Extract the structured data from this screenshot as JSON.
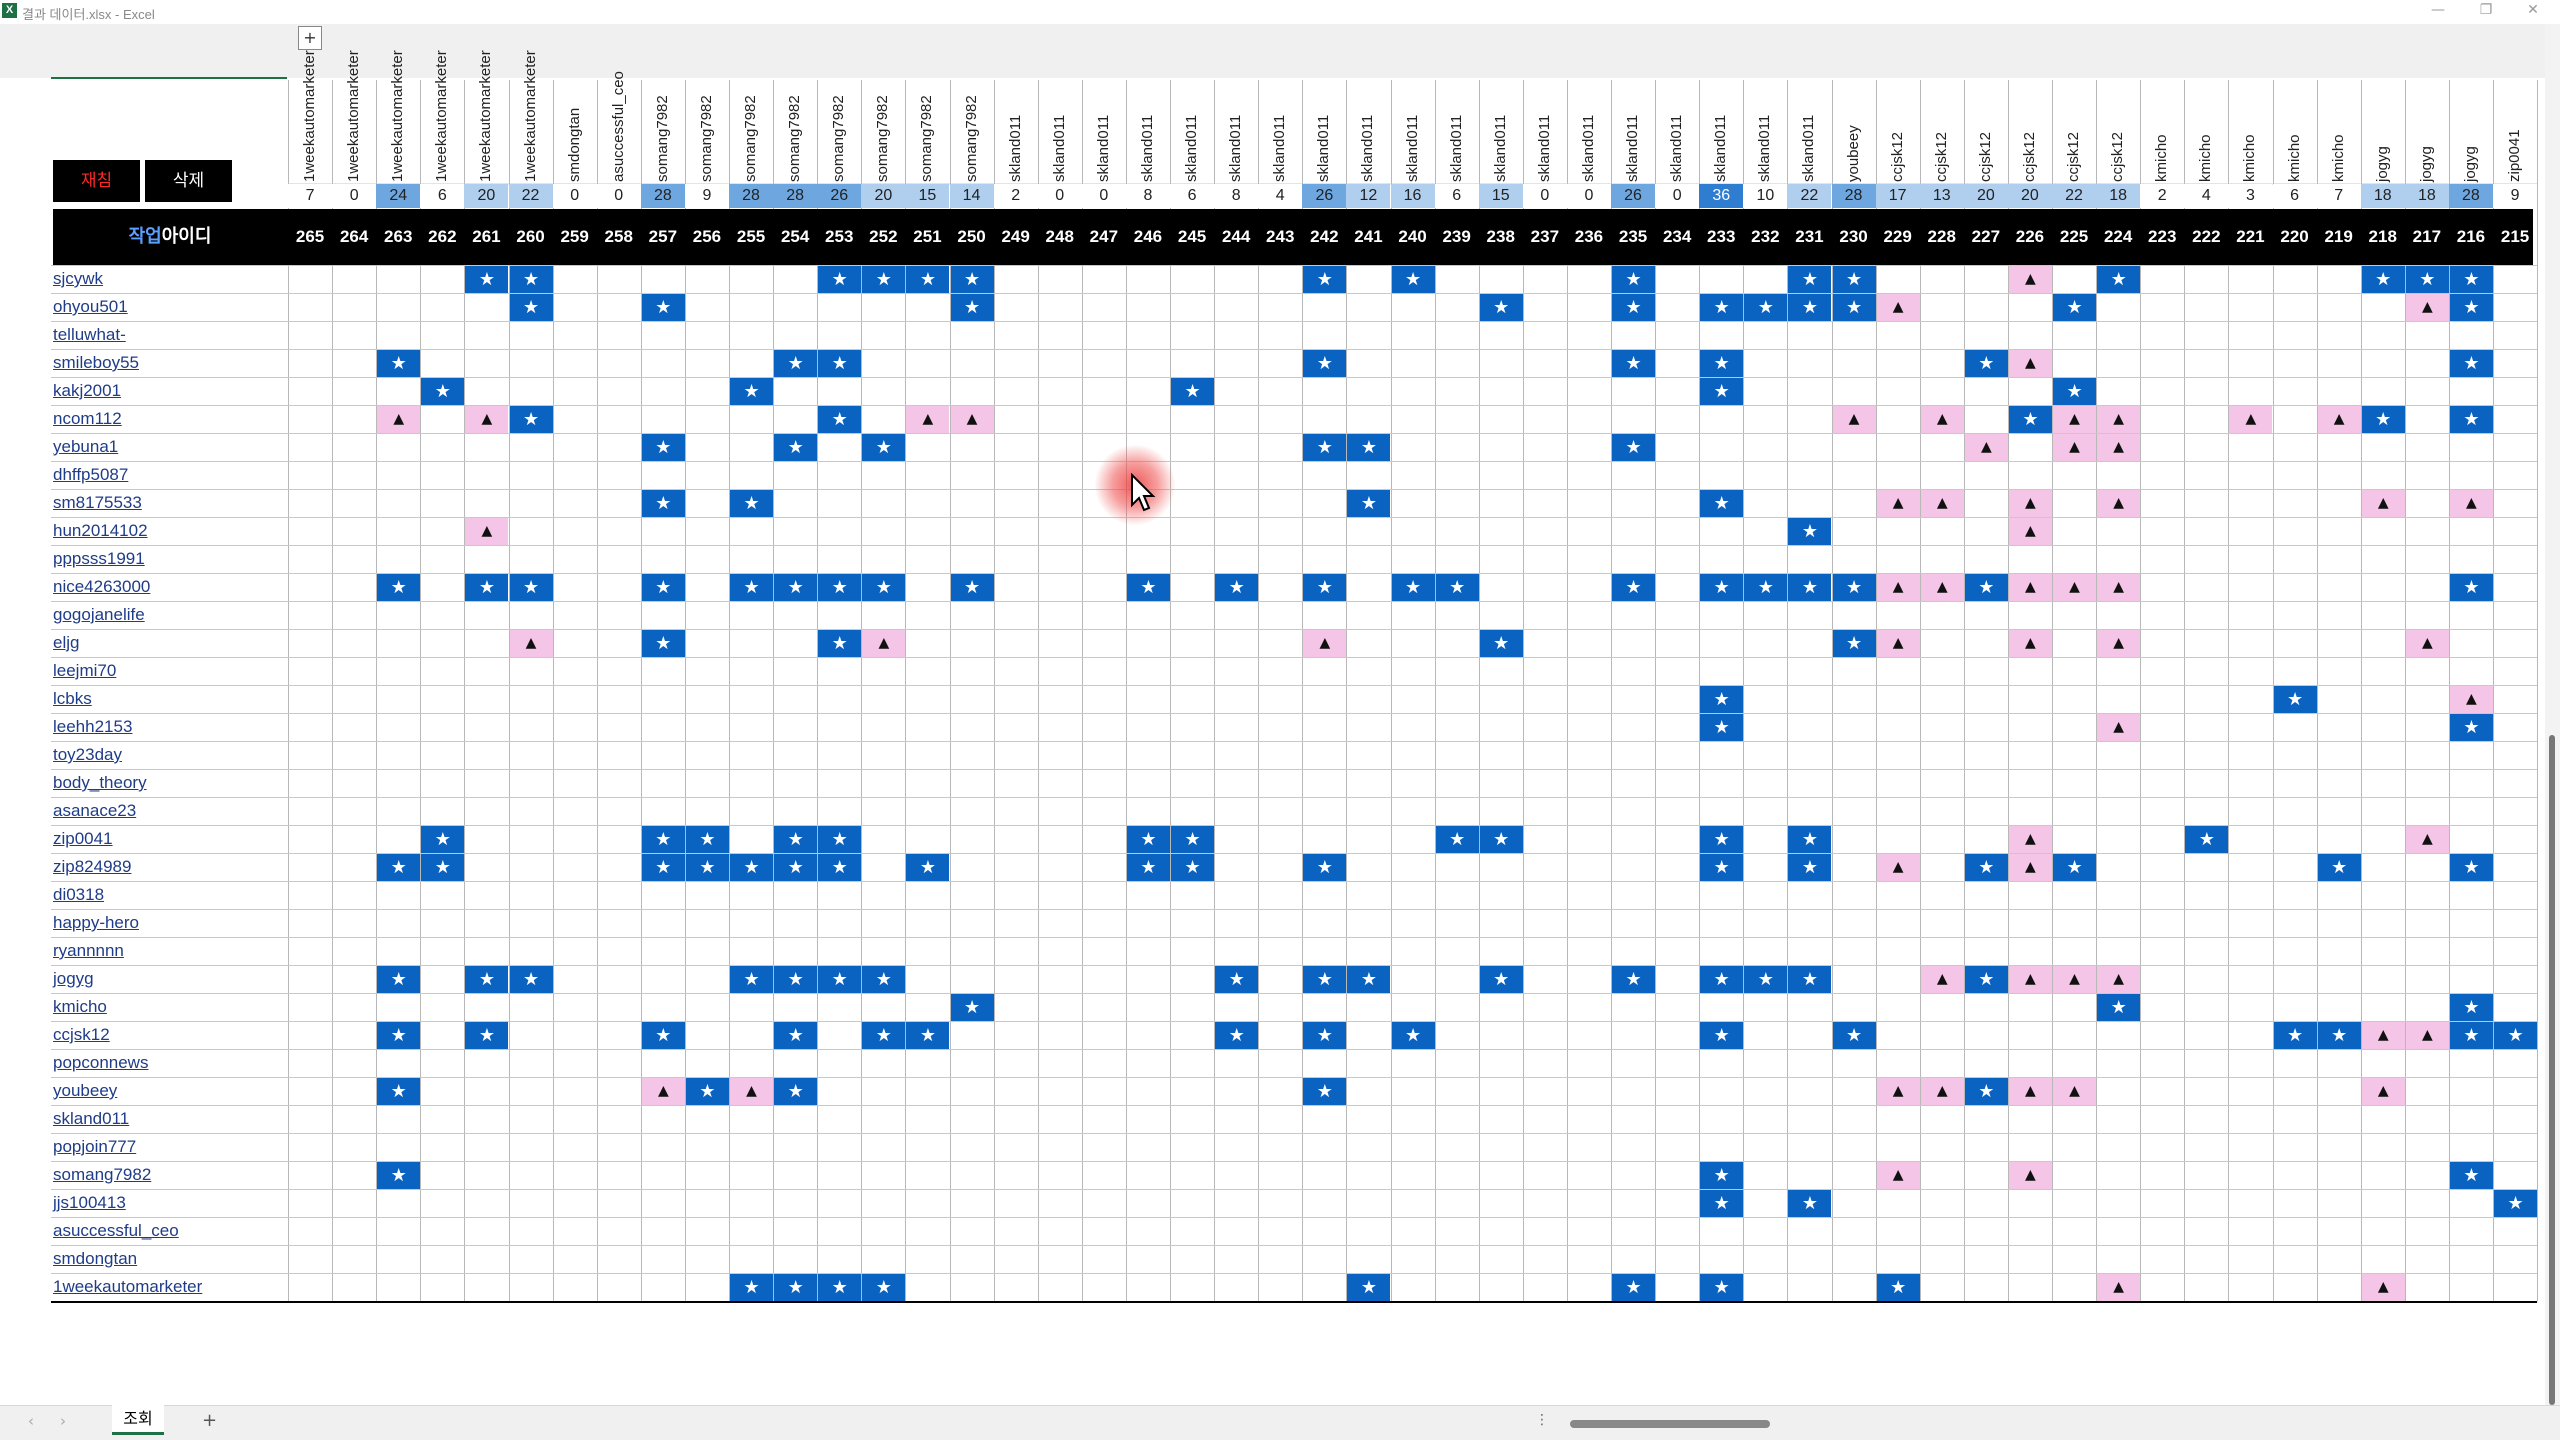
{
  "window": {
    "title": "결과 데이터.xlsx - Excel",
    "minimize": "—",
    "restore": "❐",
    "close": "✕"
  },
  "sheet_toolbar": {
    "expand_button": "+"
  },
  "buttons": {
    "register": "재침",
    "delete": "삭제"
  },
  "header": {
    "label_accent": "작업",
    "label_rest": "아이디"
  },
  "columns": [
    {
      "author": "1weekautomarketer",
      "count": "7",
      "num": "265",
      "level": 0
    },
    {
      "author": "1weekautomarketer",
      "count": "0",
      "num": "264",
      "level": 0
    },
    {
      "author": "1weekautomarketer",
      "count": "24",
      "num": "263",
      "level": 2
    },
    {
      "author": "1weekautomarketer",
      "count": "6",
      "num": "262",
      "level": 0
    },
    {
      "author": "1weekautomarketer",
      "count": "20",
      "num": "261",
      "level": 1
    },
    {
      "author": "1weekautomarketer",
      "count": "22",
      "num": "260",
      "level": 1
    },
    {
      "author": "smdongtan",
      "count": "0",
      "num": "259",
      "level": 0
    },
    {
      "author": "asuccessful_ceo",
      "count": "0",
      "num": "258",
      "level": 0
    },
    {
      "author": "somang7982",
      "count": "28",
      "num": "257",
      "level": 2
    },
    {
      "author": "somang7982",
      "count": "9",
      "num": "256",
      "level": 0
    },
    {
      "author": "somang7982",
      "count": "28",
      "num": "255",
      "level": 2
    },
    {
      "author": "somang7982",
      "count": "28",
      "num": "254",
      "level": 2
    },
    {
      "author": "somang7982",
      "count": "26",
      "num": "253",
      "level": 2
    },
    {
      "author": "somang7982",
      "count": "20",
      "num": "252",
      "level": 1
    },
    {
      "author": "somang7982",
      "count": "15",
      "num": "251",
      "level": 1
    },
    {
      "author": "somang7982",
      "count": "14",
      "num": "250",
      "level": 1
    },
    {
      "author": "skland011",
      "count": "2",
      "num": "249",
      "level": 0
    },
    {
      "author": "skland011",
      "count": "0",
      "num": "248",
      "level": 0
    },
    {
      "author": "skland011",
      "count": "0",
      "num": "247",
      "level": 0
    },
    {
      "author": "skland011",
      "count": "8",
      "num": "246",
      "level": 0
    },
    {
      "author": "skland011",
      "count": "6",
      "num": "245",
      "level": 0
    },
    {
      "author": "skland011",
      "count": "8",
      "num": "244",
      "level": 0
    },
    {
      "author": "skland011",
      "count": "4",
      "num": "243",
      "level": 0
    },
    {
      "author": "skland011",
      "count": "26",
      "num": "242",
      "level": 2
    },
    {
      "author": "skland011",
      "count": "12",
      "num": "241",
      "level": 1
    },
    {
      "author": "skland011",
      "count": "16",
      "num": "240",
      "level": 1
    },
    {
      "author": "skland011",
      "count": "6",
      "num": "239",
      "level": 0
    },
    {
      "author": "skland011",
      "count": "15",
      "num": "238",
      "level": 1
    },
    {
      "author": "skland011",
      "count": "0",
      "num": "237",
      "level": 0
    },
    {
      "author": "skland011",
      "count": "0",
      "num": "236",
      "level": 0
    },
    {
      "author": "skland011",
      "count": "26",
      "num": "235",
      "level": 2
    },
    {
      "author": "skland011",
      "count": "0",
      "num": "234",
      "level": 0
    },
    {
      "author": "skland011",
      "count": "36",
      "num": "233",
      "level": 3
    },
    {
      "author": "skland011",
      "count": "10",
      "num": "232",
      "level": 0
    },
    {
      "author": "skland011",
      "count": "22",
      "num": "231",
      "level": 1
    },
    {
      "author": "youbeey",
      "count": "28",
      "num": "230",
      "level": 2
    },
    {
      "author": "ccjsk12",
      "count": "17",
      "num": "229",
      "level": 1
    },
    {
      "author": "ccjsk12",
      "count": "13",
      "num": "228",
      "level": 1
    },
    {
      "author": "ccjsk12",
      "count": "20",
      "num": "227",
      "level": 1
    },
    {
      "author": "ccjsk12",
      "count": "20",
      "num": "226",
      "level": 1
    },
    {
      "author": "ccjsk12",
      "count": "22",
      "num": "225",
      "level": 1
    },
    {
      "author": "ccjsk12",
      "count": "18",
      "num": "224",
      "level": 1
    },
    {
      "author": "kmicho",
      "count": "2",
      "num": "223",
      "level": 0
    },
    {
      "author": "kmicho",
      "count": "4",
      "num": "222",
      "level": 0
    },
    {
      "author": "kmicho",
      "count": "3",
      "num": "221",
      "level": 0
    },
    {
      "author": "kmicho",
      "count": "6",
      "num": "220",
      "level": 0
    },
    {
      "author": "kmicho",
      "count": "7",
      "num": "219",
      "level": 0
    },
    {
      "author": "jogyg",
      "count": "18",
      "num": "218",
      "level": 1
    },
    {
      "author": "jogyg",
      "count": "18",
      "num": "217",
      "level": 1
    },
    {
      "author": "jogyg",
      "count": "28",
      "num": "216",
      "level": 2
    },
    {
      "author": "zip0041",
      "count": "9",
      "num": "215",
      "level": 0
    }
  ],
  "count_colors": [
    "#dceaf8",
    "#b0cfee",
    "#6ea7e0",
    "#2f7dd1"
  ],
  "users": [
    {
      "id": "sjcywk",
      "stars": [
        4,
        5,
        12,
        13,
        14,
        15,
        23,
        25,
        30,
        34,
        35,
        41,
        47,
        48,
        49
      ],
      "tris": [
        39
      ]
    },
    {
      "id": "ohyou501",
      "stars": [
        5,
        8,
        15,
        27,
        30,
        32,
        33,
        34,
        35,
        40,
        49
      ],
      "tris": [
        36,
        48
      ]
    },
    {
      "id": "telluwhat-",
      "stars": [],
      "tris": []
    },
    {
      "id": "smileboy55",
      "stars": [
        2,
        11,
        12,
        23,
        30,
        32,
        38,
        49
      ],
      "tris": [
        39
      ]
    },
    {
      "id": "kakj2001",
      "stars": [
        3,
        10,
        20,
        32,
        40
      ],
      "tris": []
    },
    {
      "id": "ncom112",
      "stars": [
        5,
        12,
        39,
        47,
        49
      ],
      "tris": [
        2,
        4,
        14,
        15,
        35,
        37,
        40,
        41,
        44,
        46
      ]
    },
    {
      "id": "yebuna1",
      "stars": [
        8,
        11,
        13,
        23,
        24,
        30
      ],
      "tris": [
        38,
        40,
        41
      ]
    },
    {
      "id": "dhffp5087",
      "stars": [],
      "tris": []
    },
    {
      "id": "sm8175533",
      "stars": [
        8,
        10,
        24,
        32
      ],
      "tris": [
        36,
        37,
        39,
        41,
        47,
        49
      ]
    },
    {
      "id": "hun2014102",
      "stars": [
        34
      ],
      "tris": [
        4,
        39
      ]
    },
    {
      "id": "pppsss1991",
      "stars": [],
      "tris": []
    },
    {
      "id": "nice4263000",
      "stars": [
        2,
        4,
        5,
        8,
        10,
        11,
        12,
        13,
        15,
        19,
        21,
        23,
        25,
        26,
        30,
        32,
        33,
        34,
        35,
        38,
        49
      ],
      "tris": [
        36,
        37,
        39,
        40,
        41
      ]
    },
    {
      "id": "gogojanelife",
      "stars": [],
      "tris": []
    },
    {
      "id": "eljg",
      "stars": [
        8,
        12,
        27,
        35
      ],
      "tris": [
        5,
        13,
        23,
        36,
        39,
        41,
        48
      ]
    },
    {
      "id": "leejmi70",
      "stars": [],
      "tris": []
    },
    {
      "id": "lcbks",
      "stars": [
        32,
        45
      ],
      "tris": [
        49
      ]
    },
    {
      "id": "leehh2153",
      "stars": [
        32,
        49
      ],
      "tris": [
        41
      ]
    },
    {
      "id": "toy23day",
      "stars": [],
      "tris": []
    },
    {
      "id": "body_theory",
      "stars": [],
      "tris": []
    },
    {
      "id": "asanace23",
      "stars": [],
      "tris": []
    },
    {
      "id": "zip0041",
      "stars": [
        3,
        8,
        9,
        11,
        12,
        19,
        20,
        26,
        27,
        32,
        34,
        43
      ],
      "tris": [
        39,
        48
      ]
    },
    {
      "id": "zip824989",
      "stars": [
        2,
        3,
        8,
        9,
        10,
        11,
        12,
        14,
        19,
        20,
        23,
        32,
        34,
        38,
        40,
        46,
        49
      ],
      "tris": [
        36,
        39
      ]
    },
    {
      "id": "di0318",
      "stars": [],
      "tris": []
    },
    {
      "id": "happy-hero",
      "stars": [],
      "tris": []
    },
    {
      "id": "ryannnnn",
      "stars": [],
      "tris": []
    },
    {
      "id": "jogyg",
      "stars": [
        2,
        4,
        5,
        10,
        11,
        12,
        13,
        21,
        23,
        24,
        27,
        30,
        32,
        33,
        34,
        38
      ],
      "tris": [
        37,
        39,
        40,
        41
      ]
    },
    {
      "id": "kmicho",
      "stars": [
        15,
        41,
        49
      ],
      "tris": []
    },
    {
      "id": "ccjsk12",
      "stars": [
        2,
        4,
        8,
        11,
        13,
        14,
        21,
        23,
        25,
        32,
        35,
        45,
        46,
        49,
        50
      ],
      "tris": [
        47,
        48
      ]
    },
    {
      "id": "popconnews",
      "stars": [],
      "tris": []
    },
    {
      "id": "youbeey",
      "stars": [
        2,
        9,
        11,
        23,
        38
      ],
      "tris": [
        8,
        10,
        36,
        37,
        39,
        40,
        47
      ]
    },
    {
      "id": "skland011",
      "stars": [],
      "tris": []
    },
    {
      "id": "popjoin777",
      "stars": [],
      "tris": []
    },
    {
      "id": "somang7982",
      "stars": [
        2,
        32,
        49
      ],
      "tris": [
        36,
        39
      ]
    },
    {
      "id": "jjs100413",
      "stars": [
        32,
        34,
        50
      ],
      "tris": []
    },
    {
      "id": "asuccessful_ceo",
      "stars": [],
      "tris": []
    },
    {
      "id": "smdongtan",
      "stars": [],
      "tris": []
    },
    {
      "id": "1weekautomarketer",
      "stars": [
        10,
        11,
        12,
        13,
        24,
        30,
        32,
        36
      ],
      "tris": [
        41,
        47
      ]
    }
  ],
  "icons": {
    "star": "star-icon",
    "triangle": "triangle-icon",
    "cursor": "mouse-cursor-icon"
  },
  "colors": {
    "star_fill": "#0b63c1",
    "triangle_fill": "#f4c5e6",
    "header_black": "#000000",
    "register_text": "#ff2828"
  },
  "status_bar": {
    "prev": "‹",
    "next": "›",
    "sheet_tab": "조회",
    "add_sheet": "+",
    "scroll_dots": "⋮"
  }
}
